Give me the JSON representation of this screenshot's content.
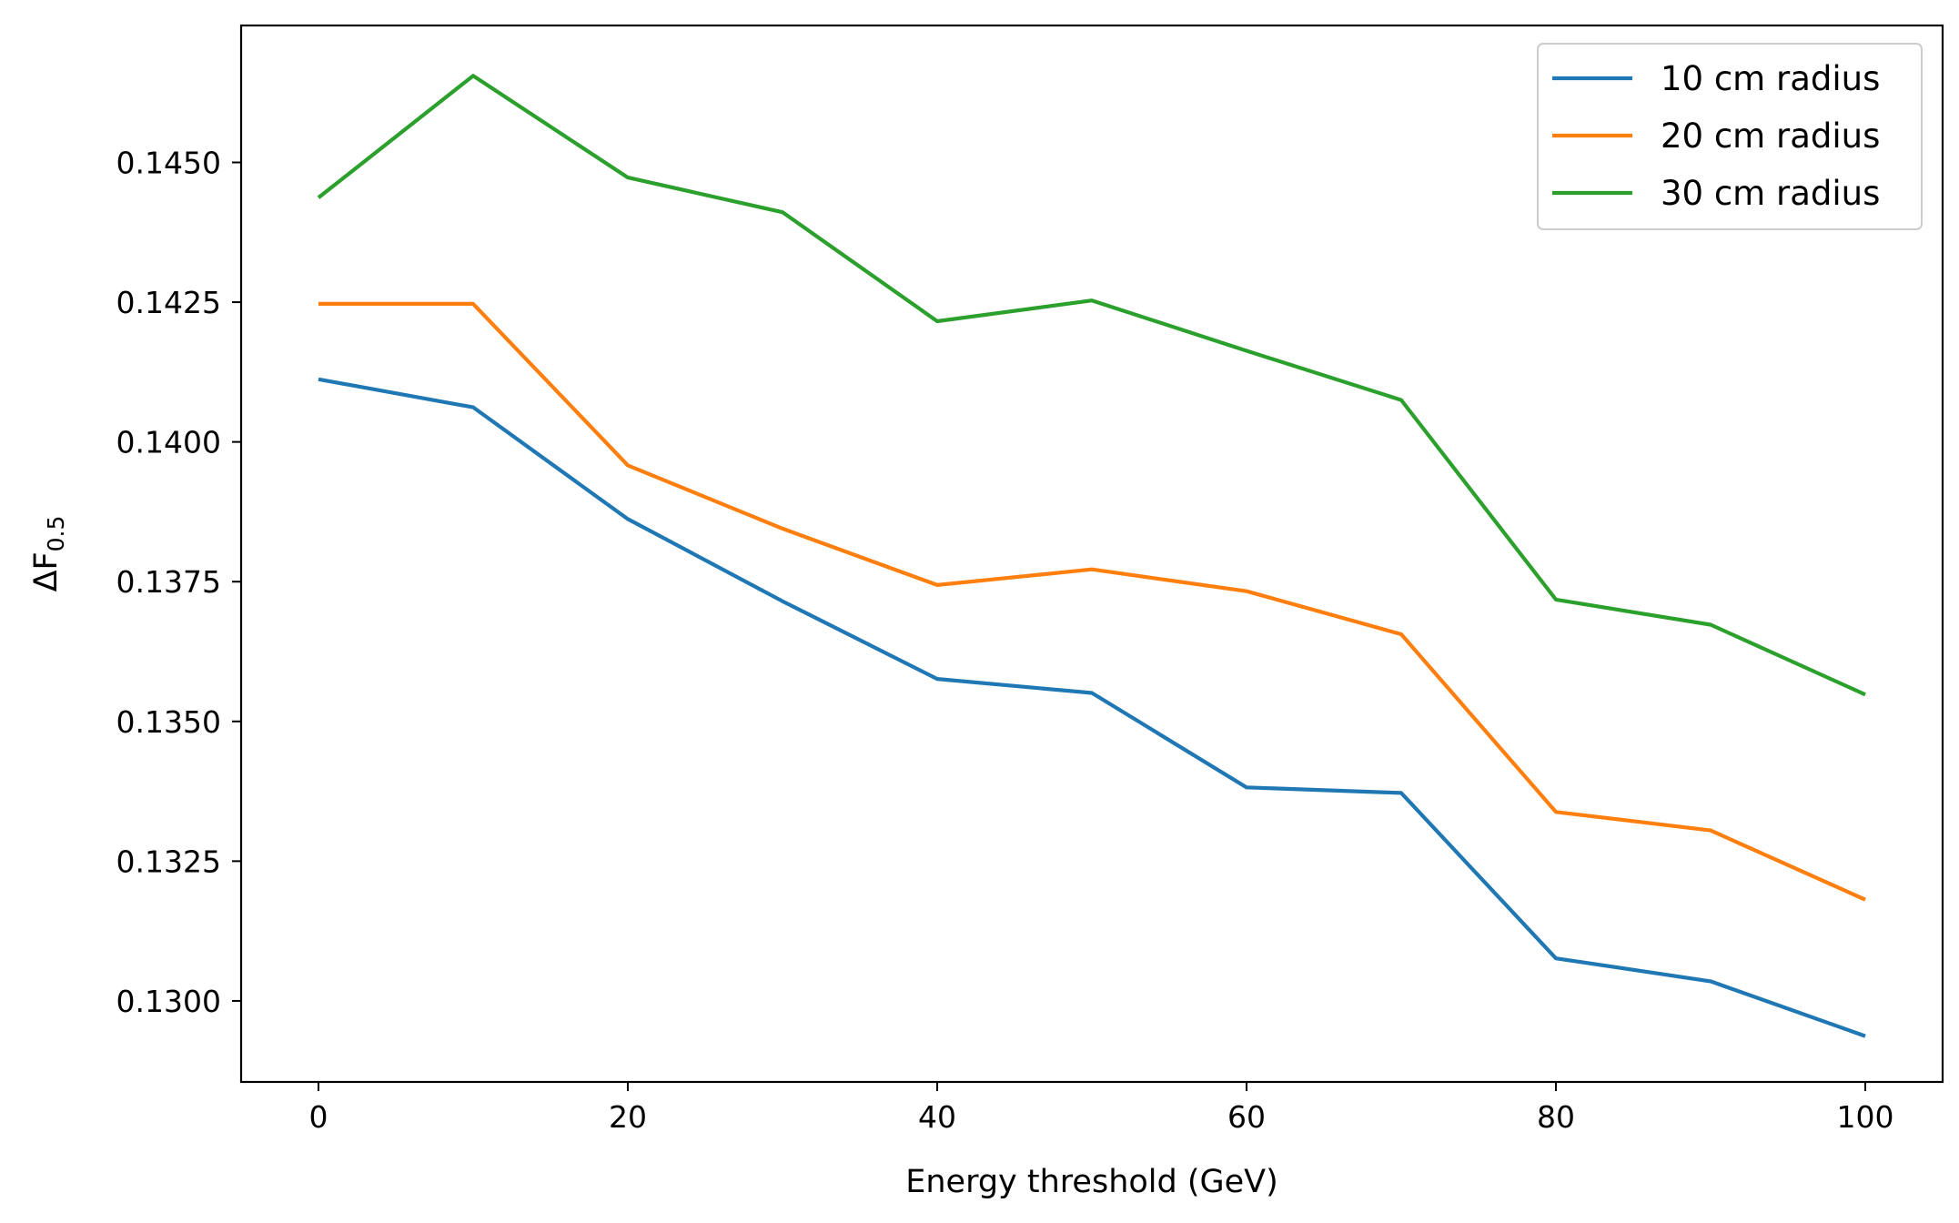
{
  "chart_data": {
    "type": "line",
    "title": "",
    "xlabel": "Energy threshold (GeV)",
    "ylabel": {
      "base": "ΔF",
      "sub": "0.5"
    },
    "x": [
      0,
      10,
      20,
      30,
      40,
      50,
      60,
      70,
      80,
      90,
      100
    ],
    "xlim": [
      -5,
      105
    ],
    "ylim": [
      0.12855,
      0.14745
    ],
    "xticks": [
      0,
      20,
      40,
      60,
      80,
      100
    ],
    "yticks": [
      0.13,
      0.1325,
      0.135,
      0.1375,
      0.14,
      0.1425,
      0.145
    ],
    "ytick_labels": [
      "0.1300",
      "0.1325",
      "0.1350",
      "0.1375",
      "0.1400",
      "0.1425",
      "0.1450"
    ],
    "grid": false,
    "legend_position": "top-right",
    "series": [
      {
        "name": "10 cm radius",
        "color": "#1f77b4",
        "values": [
          0.14112,
          0.14062,
          0.13862,
          0.13715,
          0.13576,
          0.13551,
          0.13382,
          0.13372,
          0.13076,
          0.13035,
          0.12937
        ]
      },
      {
        "name": "20 cm radius",
        "color": "#ff7f0e",
        "values": [
          0.14247,
          0.14247,
          0.13958,
          0.13845,
          0.13744,
          0.13772,
          0.13733,
          0.13656,
          0.13338,
          0.13305,
          0.13181
        ]
      },
      {
        "name": "30 cm radius",
        "color": "#2ca02c",
        "values": [
          0.14437,
          0.14655,
          0.14473,
          0.14411,
          0.14216,
          0.14253,
          0.14163,
          0.14075,
          0.13718,
          0.13673,
          0.13548
        ]
      }
    ]
  }
}
